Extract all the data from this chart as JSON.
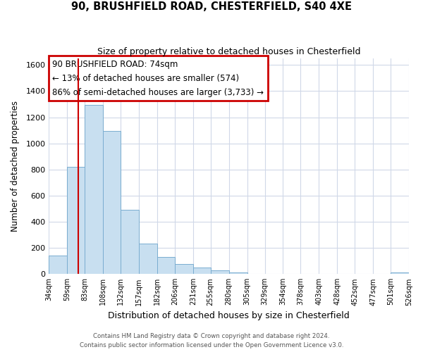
{
  "title": "90, BRUSHFIELD ROAD, CHESTERFIELD, S40 4XE",
  "subtitle": "Size of property relative to detached houses in Chesterfield",
  "xlabel": "Distribution of detached houses by size in Chesterfield",
  "ylabel": "Number of detached properties",
  "bar_color": "#c8dff0",
  "bar_edge_color": "#7aadd0",
  "background_color": "#ffffff",
  "grid_color": "#d0d8e8",
  "vline_x": 74,
  "vline_color": "#cc0000",
  "bin_edges": [
    34,
    59,
    83,
    108,
    132,
    157,
    182,
    206,
    231,
    255,
    280,
    305,
    329,
    354,
    378,
    403,
    428,
    452,
    477,
    501,
    526
  ],
  "bin_heights": [
    140,
    820,
    1295,
    1095,
    490,
    235,
    130,
    75,
    50,
    28,
    15,
    2,
    0,
    0,
    0,
    0,
    0,
    0,
    0,
    12
  ],
  "tick_labels": [
    "34sqm",
    "59sqm",
    "83sqm",
    "108sqm",
    "132sqm",
    "157sqm",
    "182sqm",
    "206sqm",
    "231sqm",
    "255sqm",
    "280sqm",
    "305sqm",
    "329sqm",
    "354sqm",
    "378sqm",
    "403sqm",
    "428sqm",
    "452sqm",
    "477sqm",
    "501sqm",
    "526sqm"
  ],
  "ylim": [
    0,
    1650
  ],
  "yticks": [
    0,
    200,
    400,
    600,
    800,
    1000,
    1200,
    1400,
    1600
  ],
  "annotation_line1": "90 BRUSHFIELD ROAD: 74sqm",
  "annotation_line2": "← 13% of detached houses are smaller (574)",
  "annotation_line3": "86% of semi-detached houses are larger (3,733) →",
  "footer_line1": "Contains HM Land Registry data © Crown copyright and database right 2024.",
  "footer_line2": "Contains public sector information licensed under the Open Government Licence v3.0."
}
